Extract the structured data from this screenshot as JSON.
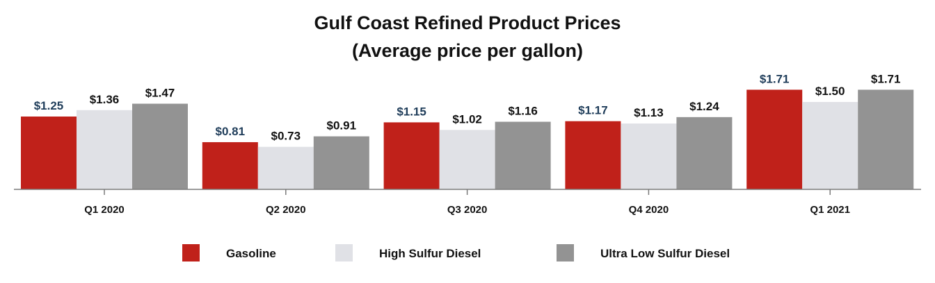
{
  "chart_data": {
    "type": "bar",
    "title": "Gulf Coast Refined Product Prices",
    "subtitle": "(Average price per gallon)",
    "categories": [
      "Q1 2020",
      "Q2 2020",
      "Q3 2020",
      "Q4 2020",
      "Q1 2021"
    ],
    "series": [
      {
        "name": "Gasoline",
        "color": "#c0211a",
        "values": [
          1.25,
          0.81,
          1.15,
          1.17,
          1.71
        ],
        "labels": [
          "$1.25",
          "$0.81",
          "$1.15",
          "$1.17",
          "$1.71"
        ]
      },
      {
        "name": "High Sulfur Diesel",
        "color": "#e0e1e6",
        "values": [
          1.36,
          0.73,
          1.02,
          1.13,
          1.5
        ],
        "labels": [
          "$1.36",
          "$0.73",
          "$1.02",
          "$1.13",
          "$1.50"
        ]
      },
      {
        "name": "Ultra Low Sulfur Diesel",
        "color": "#939393",
        "values": [
          1.47,
          0.91,
          1.16,
          1.24,
          1.71
        ],
        "labels": [
          "$1.47",
          "$0.91",
          "$1.16",
          "$1.24",
          "$1.71"
        ]
      }
    ],
    "ylim": [
      0,
      2.0
    ],
    "xlabel": "",
    "ylabel": "",
    "grid": false,
    "legend": "bottom"
  }
}
